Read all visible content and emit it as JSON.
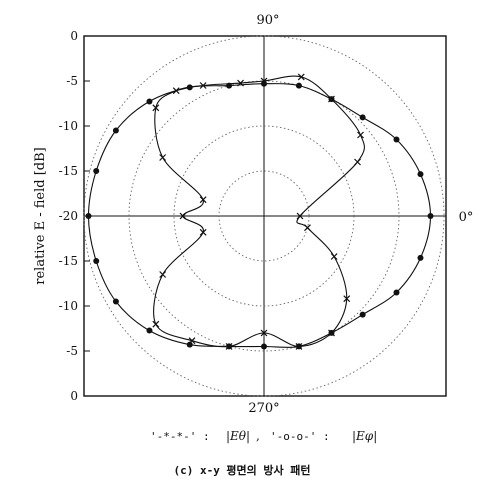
{
  "chart_data": {
    "type": "polar",
    "ylabel": "relative E - field [dB]",
    "radial_ticks": [
      "0",
      "-5",
      "-10",
      "-15",
      "-20",
      "-15",
      "-10",
      "-5",
      "0"
    ],
    "angle_labels": {
      "top": "90°",
      "right": "0°",
      "bottom": "270°"
    },
    "rlim": [
      -20,
      0
    ],
    "legend": {
      "entry1_symbol": "'-*-*-' :",
      "entry1_label": "|Eθ|",
      "separator": ",",
      "entry2_symbol": "'-o-o-' :",
      "entry2_label": "|Eφ|"
    },
    "series": [
      {
        "name": "|Eθ|",
        "marker": "x",
        "points": [
          [
            0,
            -16
          ],
          [
            30,
            -8
          ],
          [
            40,
            -6
          ],
          [
            60,
            -5
          ],
          [
            75,
            -4
          ],
          [
            90,
            -5
          ],
          [
            100,
            -5
          ],
          [
            115,
            -4
          ],
          [
            125,
            -3
          ],
          [
            135,
            -3
          ],
          [
            150,
            -7
          ],
          [
            165,
            -13
          ],
          [
            180,
            -11
          ],
          [
            195,
            -13
          ],
          [
            210,
            -7
          ],
          [
            225,
            -3
          ],
          [
            240,
            -4
          ],
          [
            255,
            -5
          ],
          [
            270,
            -7
          ],
          [
            285,
            -5
          ],
          [
            300,
            -5
          ],
          [
            315,
            -7
          ],
          [
            330,
            -11
          ],
          [
            345,
            -15
          ]
        ]
      },
      {
        "name": "|Eφ|",
        "marker": "o",
        "points": [
          [
            0,
            -1.5
          ],
          [
            15,
            -2
          ],
          [
            30,
            -3
          ],
          [
            45,
            -4.5
          ],
          [
            60,
            -5
          ],
          [
            75,
            -5
          ],
          [
            90,
            -5.3
          ],
          [
            105,
            -5
          ],
          [
            120,
            -3.5
          ],
          [
            135,
            -2
          ],
          [
            150,
            -1
          ],
          [
            165,
            -0.7
          ],
          [
            180,
            -0.5
          ],
          [
            195,
            -0.7
          ],
          [
            210,
            -1
          ],
          [
            225,
            -2
          ],
          [
            240,
            -3.5
          ],
          [
            255,
            -5
          ],
          [
            270,
            -5.5
          ],
          [
            285,
            -5
          ],
          [
            300,
            -5
          ],
          [
            315,
            -4.5
          ],
          [
            330,
            -3
          ],
          [
            345,
            -2
          ]
        ]
      }
    ]
  },
  "caption": "(c) x-y 평면의 방사 패턴"
}
